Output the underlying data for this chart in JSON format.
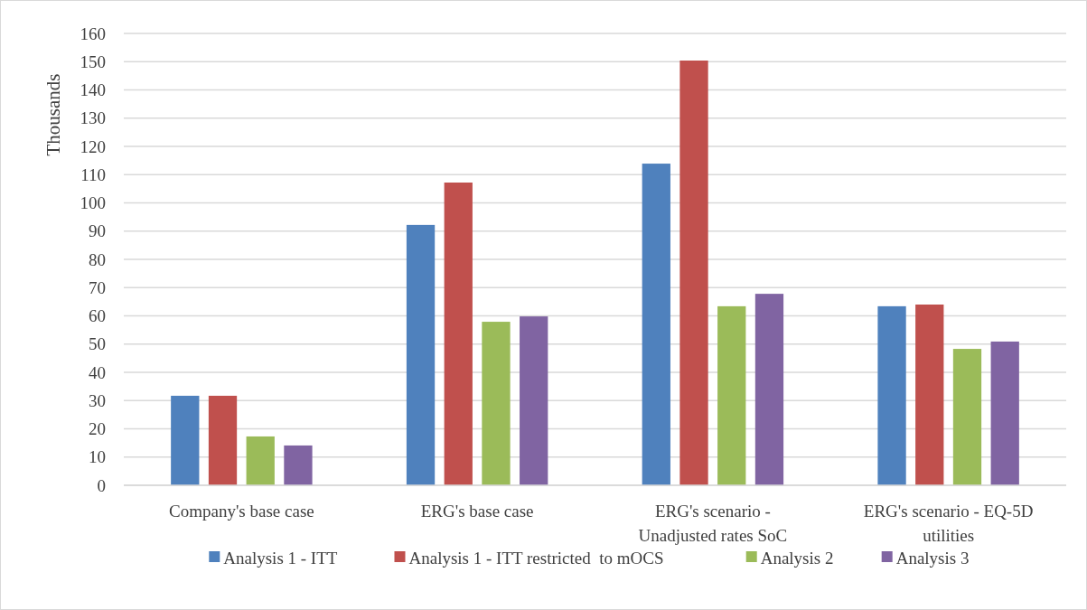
{
  "chart_data": {
    "type": "bar",
    "ylabel": "Thousands",
    "categories": [
      "Company's base case",
      "ERG's base case",
      "ERG's scenario - Unadjusted rates SoC",
      "ERG's scenario - EQ-5D utilities"
    ],
    "series": [
      {
        "name": "Analysis 1 - ITT",
        "color": "#4f81bd",
        "values": [
          31.7,
          92.2,
          113.9,
          63.4
        ]
      },
      {
        "name": "Analysis 1 - ITT restricted  to mOCS",
        "color": "#c0504d",
        "values": [
          31.7,
          107.2,
          150.4,
          64.0
        ]
      },
      {
        "name": "Analysis 2",
        "color": "#9bbb59",
        "values": [
          17.3,
          57.9,
          63.4,
          48.3
        ]
      },
      {
        "name": "Analysis 3",
        "color": "#8064a2",
        "values": [
          14.1,
          59.8,
          67.8,
          50.9
        ]
      }
    ],
    "ylim": [
      0,
      160
    ],
    "yticks": [
      0,
      10,
      20,
      30,
      40,
      50,
      60,
      70,
      80,
      90,
      100,
      110,
      120,
      130,
      140,
      150,
      160
    ],
    "grid": "y",
    "legend": "bottom"
  }
}
